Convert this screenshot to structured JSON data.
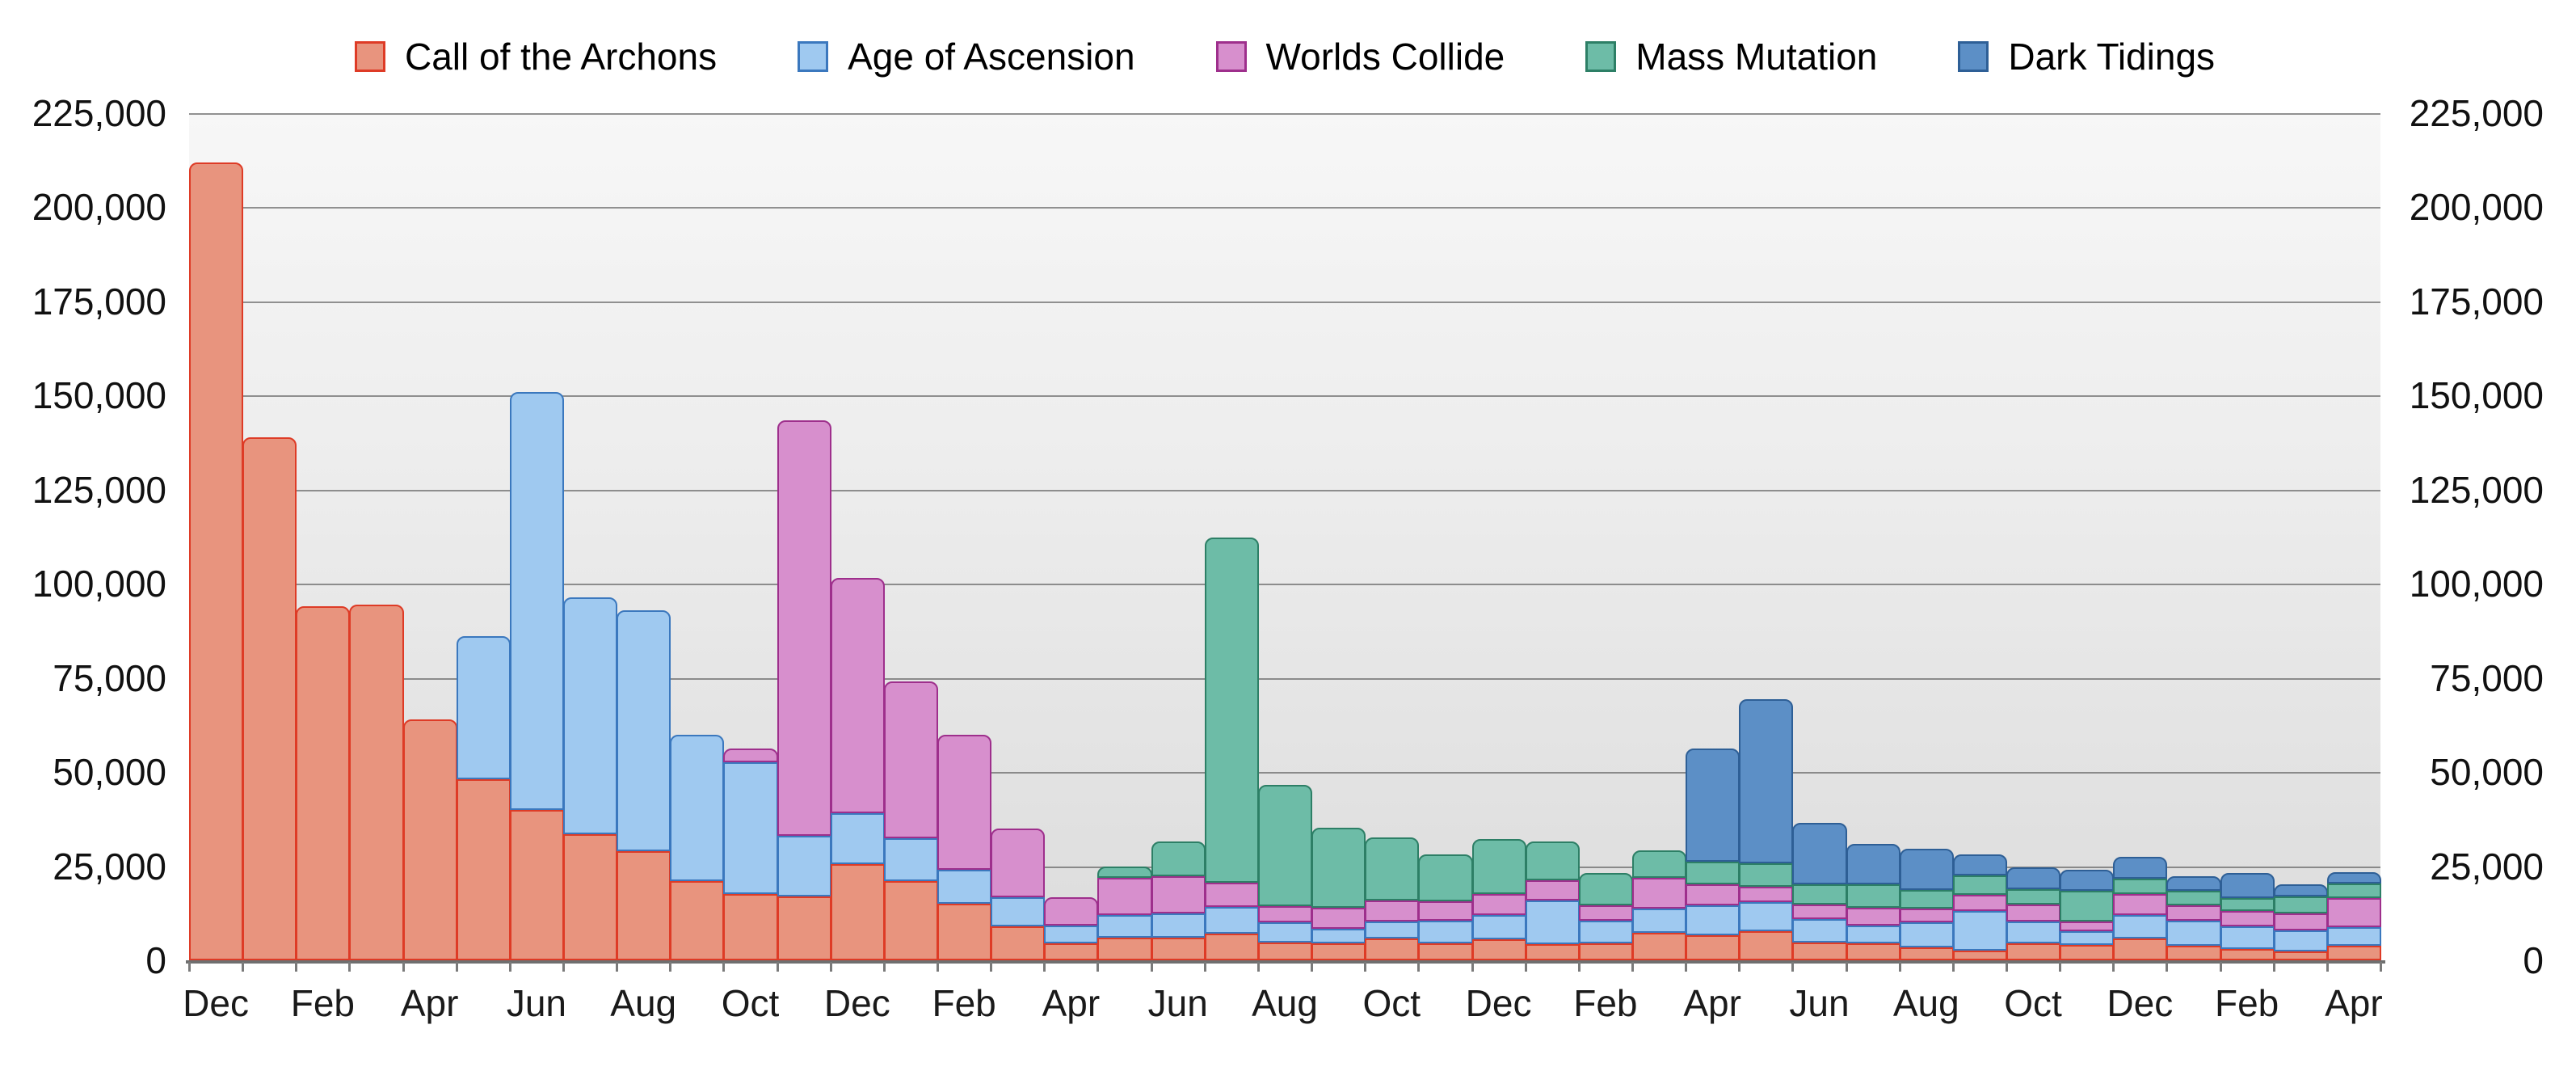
{
  "chart_data": {
    "type": "bar",
    "stacked": true,
    "title": "",
    "legend_position": "top",
    "grid": true,
    "x_axis": {
      "start": "Dec",
      "tick_every": 2,
      "months": [
        "Dec",
        "Jan",
        "Feb",
        "Mar",
        "Apr",
        "May",
        "Jun",
        "Jul",
        "Aug",
        "Sep",
        "Oct",
        "Nov",
        "Dec",
        "Jan",
        "Feb",
        "Mar",
        "Apr",
        "May",
        "Jun",
        "Jul",
        "Aug",
        "Sep",
        "Oct",
        "Nov",
        "Dec",
        "Jan",
        "Feb",
        "Mar",
        "Apr",
        "May",
        "Jun",
        "Jul",
        "Aug",
        "Sep",
        "Oct",
        "Nov",
        "Dec",
        "Jan",
        "Feb",
        "Mar",
        "Apr"
      ]
    },
    "y_axis": {
      "min": 0,
      "max": 225000,
      "step": 25000,
      "sides": "both",
      "tick_labels": [
        "0",
        "25,000",
        "50,000",
        "75,000",
        "100,000",
        "125,000",
        "150,000",
        "175,000",
        "200,000",
        "225,000"
      ]
    },
    "series": [
      {
        "name": "Call of the Archons",
        "fill": "#E8947E",
        "border": "#DE3B26",
        "values": [
          212000,
          139000,
          94000,
          94500,
          64000,
          48000,
          40000,
          33500,
          29000,
          21000,
          17500,
          17000,
          25500,
          21000,
          15000,
          9000,
          4500,
          6100,
          6000,
          7000,
          4700,
          4500,
          5700,
          4600,
          5500,
          4300,
          4600,
          7200,
          6700,
          7700,
          4800,
          4600,
          3400,
          2500,
          4600,
          4100,
          5700,
          3800,
          2900,
          2300,
          3800
        ]
      },
      {
        "name": "Age of Ascension",
        "fill": "#9FC9F0",
        "border": "#3B78BE",
        "values": [
          0,
          0,
          0,
          0,
          0,
          38000,
          111000,
          63000,
          64000,
          39000,
          35000,
          16000,
          13500,
          11500,
          9000,
          7700,
          4800,
          6000,
          6400,
          7200,
          5400,
          3800,
          4500,
          6000,
          6500,
          11500,
          5900,
          6600,
          7900,
          7700,
          6200,
          4700,
          6600,
          10600,
          5700,
          3600,
          6300,
          6800,
          6200,
          5700,
          5100
        ]
      },
      {
        "name": "Worlds Collide",
        "fill": "#D78FCD",
        "border": "#9E2F8C",
        "values": [
          0,
          0,
          0,
          0,
          0,
          0,
          0,
          0,
          0,
          0,
          3800,
          110500,
          62500,
          41500,
          36000,
          18300,
          7400,
          9700,
          10000,
          6500,
          4300,
          5600,
          5700,
          5100,
          5700,
          5500,
          4000,
          8200,
          5500,
          4100,
          3800,
          4600,
          3800,
          4300,
          4500,
          2700,
          5500,
          3900,
          4100,
          4400,
          7600
        ]
      },
      {
        "name": "Mass Mutation",
        "fill": "#6DBCA7",
        "border": "#2D7F66",
        "values": [
          0,
          0,
          0,
          0,
          0,
          0,
          0,
          0,
          0,
          0,
          0,
          0,
          0,
          0,
          0,
          0,
          0,
          3100,
          9100,
          91500,
          32200,
          21400,
          16700,
          12400,
          14600,
          10300,
          8600,
          7200,
          6000,
          6300,
          5400,
          6200,
          4900,
          5100,
          4100,
          8100,
          4100,
          3900,
          3300,
          4500,
          3800
        ]
      },
      {
        "name": "Dark Tidings",
        "fill": "#5C8FC6",
        "border": "#2E5F96",
        "values": [
          0,
          0,
          0,
          0,
          0,
          0,
          0,
          0,
          0,
          0,
          0,
          0,
          0,
          0,
          0,
          0,
          0,
          0,
          0,
          0,
          0,
          0,
          0,
          0,
          0,
          0,
          0,
          0,
          30100,
          43500,
          16300,
          10900,
          11000,
          5600,
          5800,
          5500,
          5800,
          3900,
          6600,
          3300,
          3000
        ]
      }
    ]
  },
  "colors": {
    "plot_bg_top": "#f7f7f7",
    "plot_bg_bottom": "#dcdcdc",
    "gridline": "#5a5a5a",
    "axis_line": "#6f6f6f",
    "tick": "#7a7a7a",
    "text": "#111111",
    "page_bg": "#ffffff"
  }
}
